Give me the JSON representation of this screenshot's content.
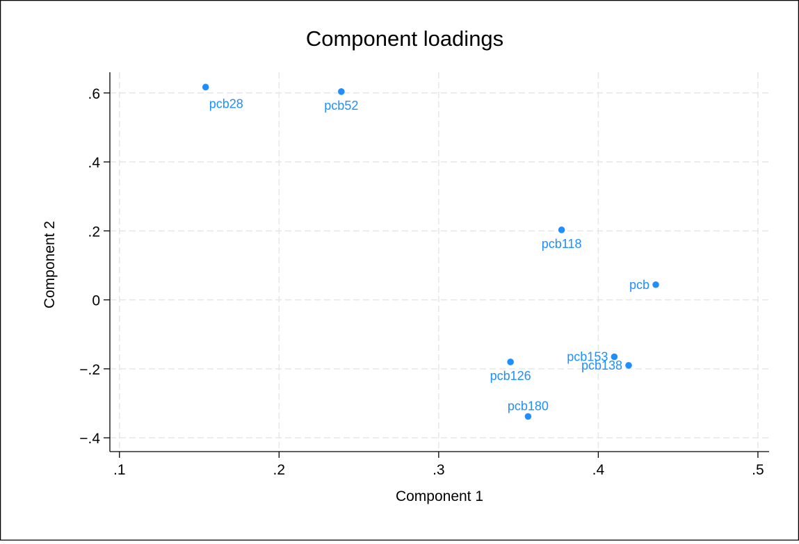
{
  "chart_data": {
    "type": "scatter",
    "title": "Component loadings",
    "xlabel": "Component 1",
    "ylabel": "Component 2",
    "xlim": [
      0.094,
      0.507
    ],
    "ylim": [
      -0.44,
      0.66
    ],
    "grid": true,
    "x_ticks": [
      {
        "value": 0.1,
        "label": ".1"
      },
      {
        "value": 0.2,
        "label": ".2"
      },
      {
        "value": 0.3,
        "label": ".3"
      },
      {
        "value": 0.4,
        "label": ".4"
      },
      {
        "value": 0.5,
        "label": ".5"
      }
    ],
    "y_ticks": [
      {
        "value": -0.4,
        "label": "−.4"
      },
      {
        "value": -0.2,
        "label": "−.2"
      },
      {
        "value": 0,
        "label": "0"
      },
      {
        "value": 0.2,
        "label": ".2"
      },
      {
        "value": 0.4,
        "label": ".4"
      },
      {
        "value": 0.6,
        "label": ".6"
      }
    ],
    "marker_color": "#1f8fff",
    "points": [
      {
        "label": "pcb28",
        "x": 0.154,
        "y": 0.617,
        "label_pos": "below-right"
      },
      {
        "label": "pcb52",
        "x": 0.239,
        "y": 0.604,
        "label_pos": "below"
      },
      {
        "label": "pcb118",
        "x": 0.377,
        "y": 0.203,
        "label_pos": "below"
      },
      {
        "label": "pcb",
        "x": 0.436,
        "y": 0.044,
        "label_pos": "left"
      },
      {
        "label": "pcb153",
        "x": 0.41,
        "y": -0.165,
        "label_pos": "left"
      },
      {
        "label": "pcb138",
        "x": 0.419,
        "y": -0.19,
        "label_pos": "left"
      },
      {
        "label": "pcb126",
        "x": 0.345,
        "y": -0.18,
        "label_pos": "below"
      },
      {
        "label": "pcb180",
        "x": 0.356,
        "y": -0.338,
        "label_pos": "above"
      }
    ]
  }
}
